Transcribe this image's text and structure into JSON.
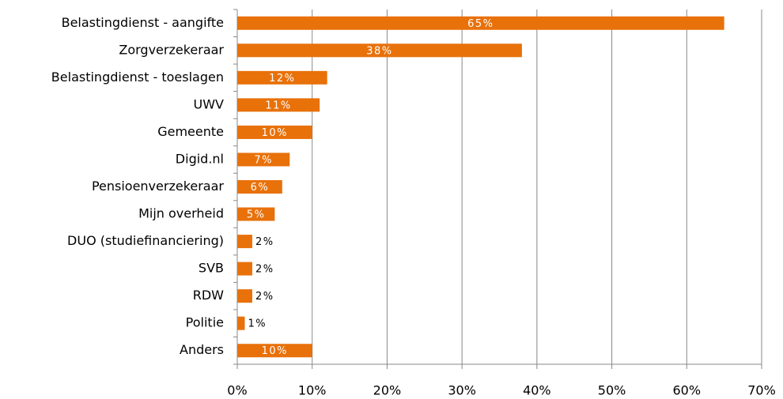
{
  "chart_data": {
    "type": "bar",
    "orientation": "horizontal",
    "categories": [
      "Belastingdienst - aangifte",
      "Zorgverzekeraar",
      "Belastingdienst - toeslagen",
      "UWV",
      "Gemeente",
      "Digid.nl",
      "Pensioenverzekeraar",
      "Mijn overheid",
      "DUO (studiefinanciering)",
      "SVB",
      "RDW",
      "Politie",
      "Anders"
    ],
    "values": [
      65,
      38,
      12,
      11,
      10,
      7,
      6,
      5,
      2,
      2,
      2,
      1,
      10
    ],
    "value_labels": [
      "65%",
      "38%",
      "12%",
      "11%",
      "10%",
      "7%",
      "6%",
      "5%",
      "2%",
      "2%",
      "2%",
      "1%",
      "10%"
    ],
    "color": "#e8710a",
    "xlim": [
      0,
      70
    ],
    "xticks": [
      {
        "value": 0,
        "label": "0%"
      },
      {
        "value": 10,
        "label": "10%"
      },
      {
        "value": 20,
        "label": "20%"
      },
      {
        "value": 30,
        "label": "30%"
      },
      {
        "value": 40,
        "label": "40%"
      },
      {
        "value": 50,
        "label": "50%"
      },
      {
        "value": 60,
        "label": "60%"
      },
      {
        "value": 70,
        "label": "70%"
      }
    ],
    "grid": true
  }
}
